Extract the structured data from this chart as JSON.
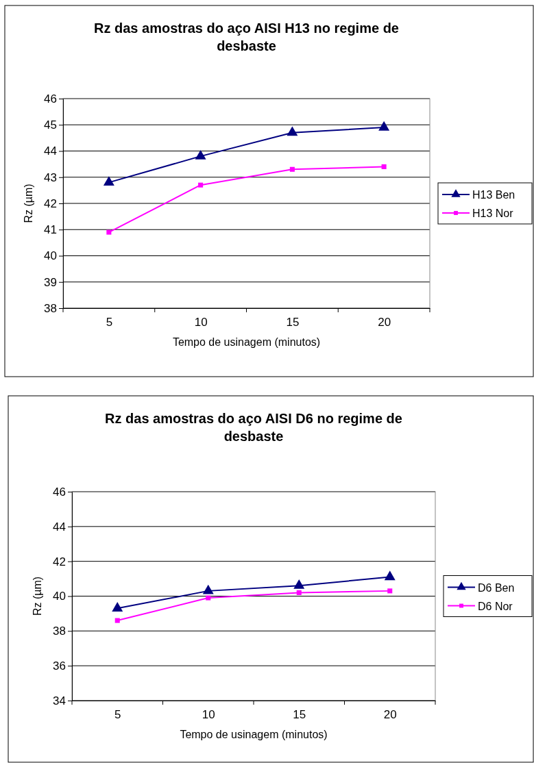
{
  "chart_data": [
    {
      "type": "line",
      "title": "Rz das amostras do aço AISI H13 no regime de desbaste",
      "xlabel": "Tempo de usinagem (minutos)",
      "ylabel": "Rz (µm)",
      "categories": [
        "5",
        "10",
        "15",
        "20"
      ],
      "ylim": [
        38,
        46
      ],
      "yticks": [
        38,
        39,
        40,
        41,
        42,
        43,
        44,
        45,
        46
      ],
      "grid": "y",
      "legend": "right",
      "series": [
        {
          "name": "H13 Ben",
          "color": "#000080",
          "marker": "triangle",
          "values": [
            42.8,
            43.8,
            44.7,
            44.9
          ]
        },
        {
          "name": "H13 Nor",
          "color": "#ff00ff",
          "marker": "square",
          "values": [
            40.9,
            42.7,
            43.3,
            43.4
          ]
        }
      ]
    },
    {
      "type": "line",
      "title": "Rz das amostras do aço AISI D6 no regime de desbaste",
      "xlabel": "Tempo de usinagem (minutos)",
      "ylabel": "Rz (µm)",
      "categories": [
        "5",
        "10",
        "15",
        "20"
      ],
      "ylim": [
        34,
        46
      ],
      "yticks": [
        34,
        36,
        38,
        40,
        42,
        44,
        46
      ],
      "grid": "y",
      "legend": "right",
      "series": [
        {
          "name": "D6 Ben",
          "color": "#000080",
          "marker": "triangle",
          "values": [
            39.3,
            40.3,
            40.6,
            41.1
          ]
        },
        {
          "name": "D6 Nor",
          "color": "#ff00ff",
          "marker": "square",
          "values": [
            38.6,
            39.9,
            40.2,
            40.3
          ]
        }
      ]
    }
  ]
}
